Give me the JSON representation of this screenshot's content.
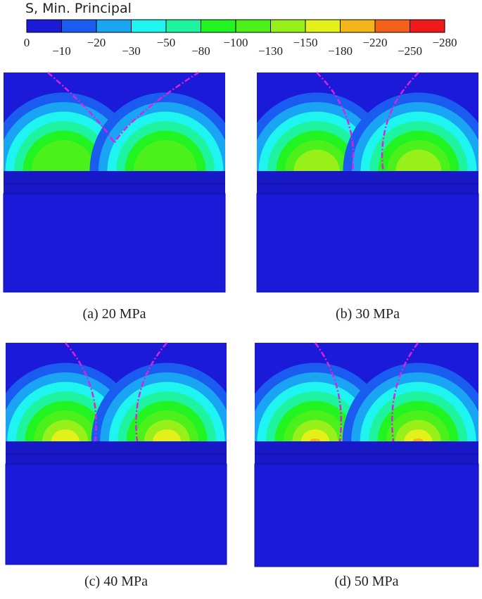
{
  "legend": {
    "title": "S, Min. Principal",
    "labels": [
      "0",
      "−10",
      "−20",
      "−30",
      "−50",
      "−80",
      "−100",
      "−130",
      "−150",
      "−180",
      "−220",
      "−250",
      "−280"
    ],
    "colors": [
      "#1a1ad8",
      "#1a5cf0",
      "#1aa4f4",
      "#1ef4f0",
      "#1ef4a0",
      "#22f422",
      "#4cf01a",
      "#98f01a",
      "#e4f01a",
      "#f4b41a",
      "#f4621a",
      "#f01a1a"
    ]
  },
  "panels": [
    {
      "caption": "(a) 20 MPa"
    },
    {
      "caption": "(b) 30 MPa"
    },
    {
      "caption": "(c) 40 MPa"
    },
    {
      "caption": "(d) 50 MPa"
    }
  ]
}
